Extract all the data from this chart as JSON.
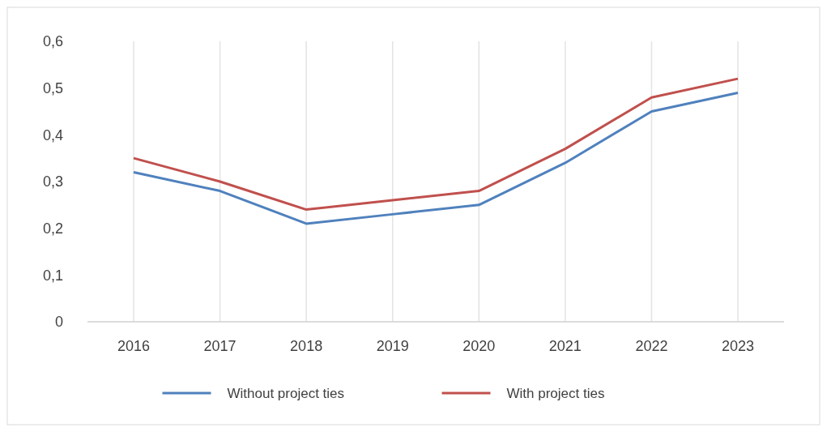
{
  "chart_data": {
    "type": "line",
    "categories": [
      "2016",
      "2017",
      "2018",
      "2019",
      "2020",
      "2021",
      "2022",
      "2023"
    ],
    "series": [
      {
        "name": "Without project ties",
        "color": "#4f81bd",
        "values": [
          0.32,
          0.28,
          0.21,
          0.23,
          0.25,
          0.34,
          0.45,
          0.49
        ]
      },
      {
        "name": "With project ties",
        "color": "#c0504d",
        "values": [
          0.35,
          0.3,
          0.24,
          0.26,
          0.28,
          0.37,
          0.48,
          0.52
        ]
      }
    ],
    "ylim": [
      0,
      0.6
    ],
    "yticks": [
      {
        "value": 0,
        "label": "0"
      },
      {
        "value": 0.1,
        "label": "0,1"
      },
      {
        "value": 0.2,
        "label": "0,2"
      },
      {
        "value": 0.3,
        "label": "0,3"
      },
      {
        "value": 0.4,
        "label": "0,4"
      },
      {
        "value": 0.5,
        "label": "0,5"
      },
      {
        "value": 0.6,
        "label": "0,6"
      }
    ],
    "grid": "x",
    "legend": "bottom",
    "marker": "none",
    "line_style": "solid"
  }
}
